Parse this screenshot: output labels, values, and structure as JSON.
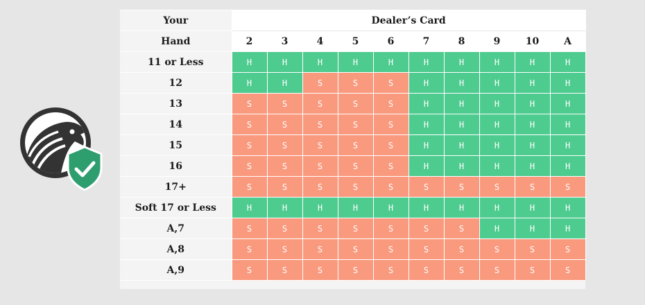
{
  "colors": {
    "hit": "#4ecb8f",
    "stand": "#f99a7f",
    "background": "#e6e6e6",
    "logo_dark": "#333333",
    "shield_green": "#2f9e6f"
  },
  "icons": {
    "logo": "eagle-head-icon",
    "badge": "shield-check-icon"
  },
  "table": {
    "hand_header_top": "Your",
    "hand_header_bottom": "Hand",
    "dealer_header": "Dealer’s Card",
    "dealer_cards": [
      "2",
      "3",
      "4",
      "5",
      "6",
      "7",
      "8",
      "9",
      "10",
      "A"
    ],
    "rows": [
      {
        "hand": "11 or Less",
        "actions": [
          "H",
          "H",
          "H",
          "H",
          "H",
          "H",
          "H",
          "H",
          "H",
          "H"
        ]
      },
      {
        "hand": "12",
        "actions": [
          "H",
          "H",
          "S",
          "S",
          "S",
          "H",
          "H",
          "H",
          "H",
          "H"
        ]
      },
      {
        "hand": "13",
        "actions": [
          "S",
          "S",
          "S",
          "S",
          "S",
          "H",
          "H",
          "H",
          "H",
          "H"
        ]
      },
      {
        "hand": "14",
        "actions": [
          "S",
          "S",
          "S",
          "S",
          "S",
          "H",
          "H",
          "H",
          "H",
          "H"
        ]
      },
      {
        "hand": "15",
        "actions": [
          "S",
          "S",
          "S",
          "S",
          "S",
          "H",
          "H",
          "H",
          "H",
          "H"
        ]
      },
      {
        "hand": "16",
        "actions": [
          "S",
          "S",
          "S",
          "S",
          "S",
          "H",
          "H",
          "H",
          "H",
          "H"
        ]
      },
      {
        "hand": "17+",
        "actions": [
          "S",
          "S",
          "S",
          "S",
          "S",
          "S",
          "S",
          "S",
          "S",
          "S"
        ]
      },
      {
        "hand": "Soft 17 or Less",
        "actions": [
          "H",
          "H",
          "H",
          "H",
          "H",
          "H",
          "H",
          "H",
          "H",
          "H"
        ]
      },
      {
        "hand": "A,7",
        "actions": [
          "S",
          "S",
          "S",
          "S",
          "S",
          "S",
          "S",
          "H",
          "H",
          "H"
        ]
      },
      {
        "hand": "A,8",
        "actions": [
          "S",
          "S",
          "S",
          "S",
          "S",
          "S",
          "S",
          "S",
          "S",
          "S"
        ]
      },
      {
        "hand": "A,9",
        "actions": [
          "S",
          "S",
          "S",
          "S",
          "S",
          "S",
          "S",
          "S",
          "S",
          "S"
        ]
      }
    ]
  }
}
